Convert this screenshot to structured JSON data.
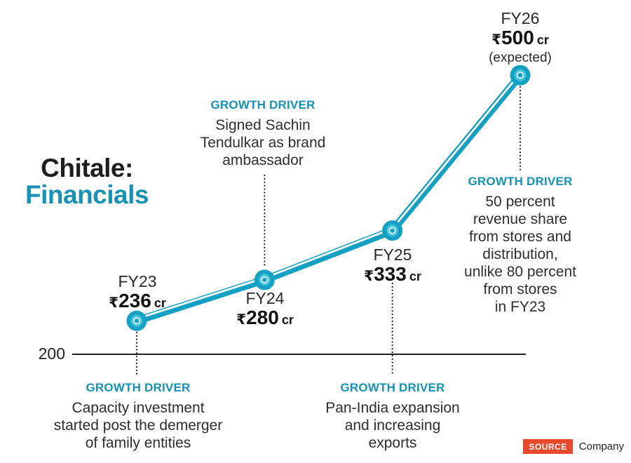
{
  "title": {
    "line1": "Chitale:",
    "line2": "Financials"
  },
  "axis": {
    "baseline_label": "200"
  },
  "colors": {
    "teal_text": "#1792b4",
    "line_teal": "#14a0c2",
    "marker_light": "#3fc4dc",
    "marker_pale": "#d2eff6",
    "axis_ink": "#222222",
    "source_badge": "#e64a2e"
  },
  "chart_data": {
    "type": "line",
    "title": "Chitale: Financials",
    "categories": [
      "FY23",
      "FY24",
      "FY25",
      "FY26"
    ],
    "values": [
      236,
      280,
      333,
      500
    ],
    "currency": "₹",
    "unit": "cr",
    "baseline": 200,
    "ylim": [
      200,
      520
    ],
    "grid": false,
    "legend": false,
    "notes": {
      "FY26": "(expected)"
    },
    "annotations": [
      {
        "target": "FY23",
        "label": "GROWTH DRIVER",
        "text": "Capacity investment started post the demerger of family entities"
      },
      {
        "target": "FY24",
        "label": "GROWTH DRIVER",
        "text": "Signed Sachin Tendulkar as brand ambassador"
      },
      {
        "target": "FY25",
        "label": "GROWTH DRIVER",
        "text": "Pan-India expansion and increasing exports"
      },
      {
        "target": "FY26",
        "label": "GROWTH DRIVER",
        "text": "50 percent revenue share from stores and distribution, unlike 80 percent from stores in FY23"
      }
    ]
  },
  "points": [
    {
      "year": "FY23",
      "currency": "₹",
      "value": "236",
      "unit": "cr",
      "note": ""
    },
    {
      "year": "FY24",
      "currency": "₹",
      "value": "280",
      "unit": "cr",
      "note": ""
    },
    {
      "year": "FY25",
      "currency": "₹",
      "value": "333",
      "unit": "cr",
      "note": ""
    },
    {
      "year": "FY26",
      "currency": "₹",
      "value": "500",
      "unit": "cr",
      "note": "(expected)"
    }
  ],
  "growth_drivers": [
    {
      "label": "GROWTH DRIVER",
      "text": "Capacity investment\nstarted post the demerger\nof family entities"
    },
    {
      "label": "GROWTH DRIVER",
      "text": "Signed Sachin\nTendulkar as brand\nambassador"
    },
    {
      "label": "GROWTH DRIVER",
      "text": "Pan-India expansion\nand increasing\nexports"
    },
    {
      "label": "GROWTH DRIVER",
      "text": "50 percent\nrevenue share\nfrom stores and\ndistribution,\nunlike 80 percent\nfrom stores\nin FY23"
    }
  ],
  "source": {
    "label": "SOURCE",
    "value": "Company"
  }
}
